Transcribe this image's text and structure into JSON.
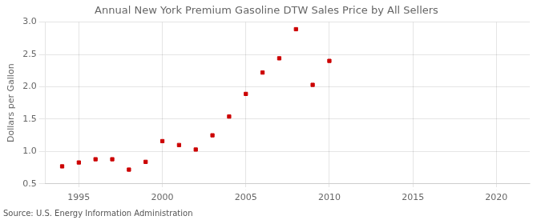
{
  "chart_data": {
    "type": "scatter",
    "title": "Annual New York Premium Gasoline DTW Sales Price by All Sellers",
    "ylabel": "Dollars per Gallon",
    "source": "Source: U.S. Energy Information Administration",
    "x": [
      1994,
      1995,
      1996,
      1997,
      1998,
      1999,
      2000,
      2001,
      2002,
      2003,
      2004,
      2005,
      2006,
      2007,
      2008,
      2009,
      2010
    ],
    "values": [
      0.77,
      0.83,
      0.88,
      0.88,
      0.72,
      0.84,
      1.16,
      1.1,
      1.03,
      1.25,
      1.54,
      1.89,
      2.22,
      2.44,
      2.89,
      2.03,
      2.4
    ],
    "color": "#cc0000",
    "marker": "square",
    "xlim": [
      1993,
      2022
    ],
    "ylim": [
      0.5,
      3.0
    ],
    "xticks": [
      1995,
      2000,
      2005,
      2010,
      2015,
      2020
    ],
    "yticks": [
      0.5,
      {
        "value": 1,
        "label": "1.0"
      },
      1.5,
      {
        "value": 2,
        "label": "2.0"
      },
      2.5,
      {
        "value": 3,
        "label": "3.0"
      }
    ],
    "grid": true
  }
}
